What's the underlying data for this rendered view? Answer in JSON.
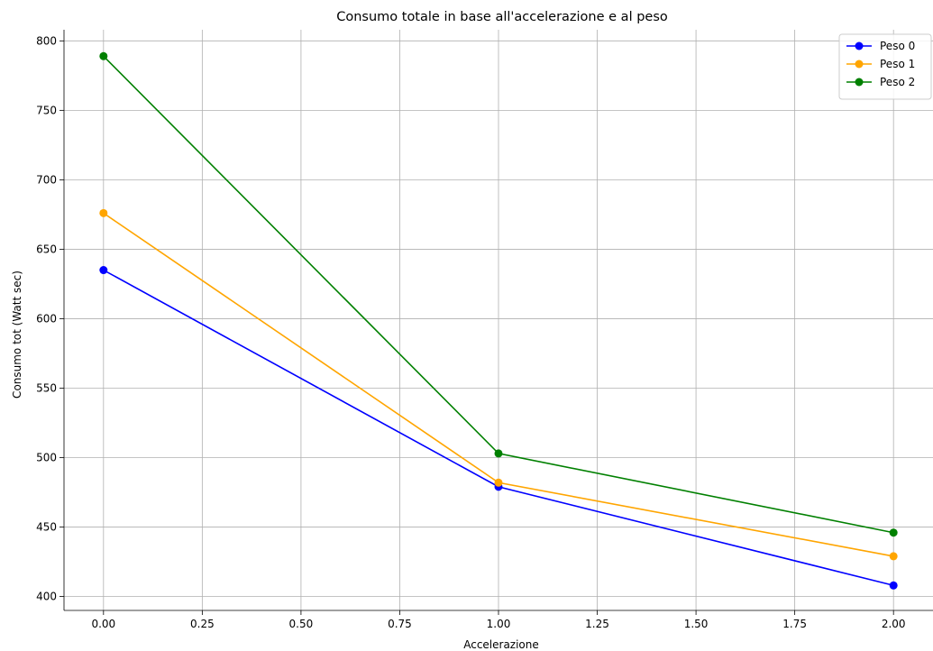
{
  "chart_data": {
    "type": "line",
    "title": "Consumo totale in base all'accelerazione e al peso",
    "xlabel": "Accelerazione",
    "ylabel": "Consumo tot (Watt sec)",
    "x": [
      0,
      1,
      2
    ],
    "xlim": [
      -0.1,
      2.1
    ],
    "ylim": [
      390,
      808
    ],
    "xticks": [
      "0.00",
      "0.25",
      "0.50",
      "0.75",
      "1.00",
      "1.25",
      "1.50",
      "1.75",
      "2.00"
    ],
    "yticks": [
      "400",
      "450",
      "500",
      "550",
      "600",
      "650",
      "700",
      "750",
      "800"
    ],
    "grid": true,
    "legend_position": "top-right",
    "series": [
      {
        "name": "Peso 0",
        "color": "#0000ff",
        "values": [
          635,
          479,
          408
        ]
      },
      {
        "name": "Peso 1",
        "color": "#ffa500",
        "values": [
          676,
          482,
          429
        ]
      },
      {
        "name": "Peso 2",
        "color": "#008000",
        "values": [
          789,
          503,
          446
        ]
      }
    ]
  }
}
